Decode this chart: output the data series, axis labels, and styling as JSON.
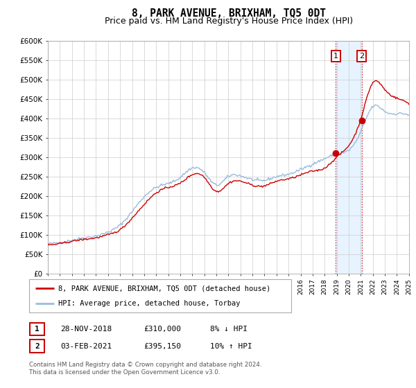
{
  "title": "8, PARK AVENUE, BRIXHAM, TQ5 0DT",
  "subtitle": "Price paid vs. HM Land Registry's House Price Index (HPI)",
  "legend_label_red": "8, PARK AVENUE, BRIXHAM, TQ5 0DT (detached house)",
  "legend_label_blue": "HPI: Average price, detached house, Torbay",
  "transaction1_date": "28-NOV-2018",
  "transaction1_price": "£310,000",
  "transaction1_hpi": "8% ↓ HPI",
  "transaction1_year": 2018.92,
  "transaction1_value": 310000,
  "transaction2_date": "03-FEB-2021",
  "transaction2_price": "£395,150",
  "transaction2_hpi": "10% ↑ HPI",
  "transaction2_year": 2021.08,
  "transaction2_value": 395150,
  "footnote1": "Contains HM Land Registry data © Crown copyright and database right 2024.",
  "footnote2": "This data is licensed under the Open Government Licence v3.0.",
  "ylim": [
    0,
    600000
  ],
  "xlim_start": 1995,
  "xlim_end": 2025,
  "red_color": "#cc0000",
  "blue_color": "#99bbdd",
  "bg_shade_color": "#ddeeff",
  "grid_color": "#cccccc",
  "title_fontsize": 10.5,
  "subtitle_fontsize": 9,
  "hpi_anchors_years": [
    1995,
    1996,
    1997,
    1998,
    1999,
    2000,
    2001,
    2002,
    2003,
    2004,
    2005,
    2006,
    2007,
    2008,
    2009,
    2010,
    2011,
    2012,
    2013,
    2014,
    2015,
    2016,
    2017,
    2018,
    2019,
    2020,
    2021,
    2022,
    2023,
    2024,
    2025
  ],
  "hpi_anchors_vals": [
    77000,
    80000,
    86000,
    92000,
    97000,
    107000,
    125000,
    160000,
    198000,
    222000,
    232000,
    248000,
    272000,
    260000,
    228000,
    250000,
    252000,
    242000,
    240000,
    250000,
    256000,
    268000,
    282000,
    296000,
    308000,
    318000,
    365000,
    430000,
    418000,
    412000,
    408000
  ],
  "pp_anchors_years": [
    1995,
    1996,
    1997,
    1998,
    1999,
    2000,
    2001,
    2002,
    2003,
    2004,
    2005,
    2006,
    2007,
    2008,
    2009,
    2010,
    2011,
    2012,
    2013,
    2014,
    2015,
    2016,
    2017,
    2018,
    2019,
    2020,
    2021,
    2022,
    2023,
    2024,
    2025
  ],
  "pp_anchors_vals": [
    74000,
    77000,
    83000,
    88000,
    92000,
    100000,
    113000,
    143000,
    178000,
    208000,
    222000,
    233000,
    255000,
    248000,
    212000,
    232000,
    238000,
    228000,
    226000,
    238000,
    244000,
    254000,
    264000,
    272000,
    300000,
    330000,
    398000,
    492000,
    474000,
    452000,
    438000
  ]
}
